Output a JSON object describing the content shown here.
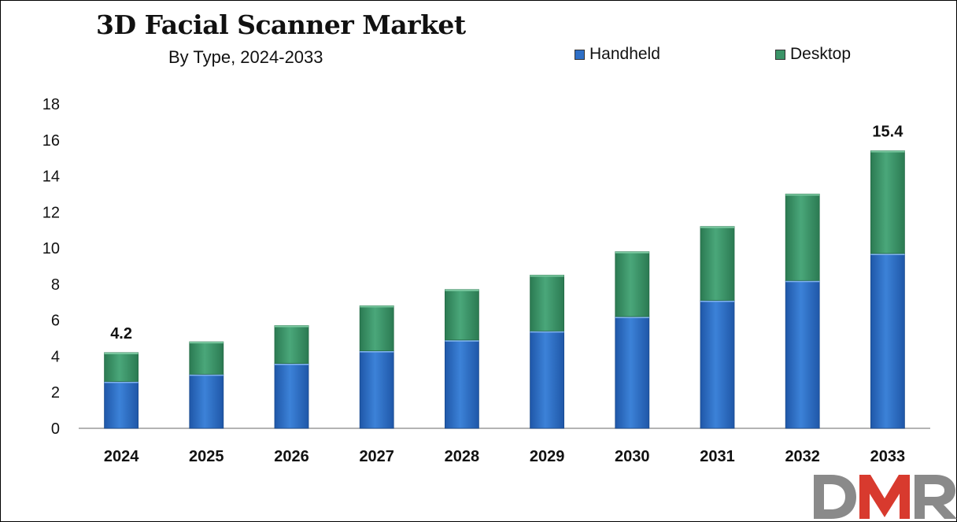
{
  "title": "3D Facial Scanner Market",
  "subtitle": "By Type, 2024-2033",
  "legend": [
    {
      "label": "Handheld",
      "color": "#2e6fc6"
    },
    {
      "label": "Desktop",
      "color": "#3b9468"
    }
  ],
  "logo_text": "DMR",
  "chart_data": {
    "type": "bar",
    "stacked": true,
    "title": "3D Facial Scanner Market",
    "subtitle": "By Type, 2024-2033",
    "categories": [
      "2024",
      "2025",
      "2026",
      "2027",
      "2028",
      "2029",
      "2030",
      "2031",
      "2032",
      "2033"
    ],
    "series": [
      {
        "name": "Handheld",
        "color": "#2e6fc6",
        "values": [
          2.6,
          3.0,
          3.6,
          4.3,
          4.9,
          5.4,
          6.2,
          7.1,
          8.2,
          9.7
        ]
      },
      {
        "name": "Desktop",
        "color": "#3b9468",
        "values": [
          1.6,
          1.8,
          2.1,
          2.5,
          2.8,
          3.1,
          3.6,
          4.1,
          4.8,
          5.7
        ]
      }
    ],
    "data_labels": [
      {
        "category": "2024",
        "text": "4.2"
      },
      {
        "category": "2033",
        "text": "15.4"
      }
    ],
    "yticks": [
      0,
      2,
      4,
      6,
      8,
      10,
      12,
      14,
      16,
      18
    ],
    "ylim": [
      0,
      18
    ],
    "grid": false,
    "legend_position": "top-right"
  }
}
